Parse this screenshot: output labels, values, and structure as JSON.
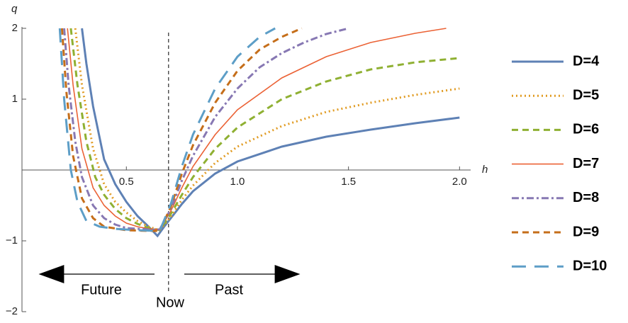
{
  "chart_data": {
    "type": "line",
    "x_label": "h",
    "y_label": "q",
    "xlim": [
      0.03,
      2.05
    ],
    "ylim": [
      -2,
      2
    ],
    "xticks": [
      0.5,
      {
        "value": 1,
        "label": "1.0"
      },
      1.5,
      {
        "value": 2,
        "label": "2.0"
      }
    ],
    "yticks": [
      {
        "value": -2,
        "label": "−2"
      },
      {
        "value": -1,
        "label": "−1"
      },
      1,
      2
    ],
    "vline": 0.69,
    "annotations": [
      "Future",
      "Now",
      "Past"
    ],
    "series": [
      {
        "name": "D=4",
        "color": "#5e81b5",
        "style": "solid-thick",
        "x": [
          0.3,
          0.32,
          0.35,
          0.4,
          0.45,
          0.5,
          0.55,
          0.6,
          0.64,
          0.67,
          0.7,
          0.75,
          0.8,
          0.9,
          1.0,
          1.2,
          1.4,
          1.6,
          1.8,
          2.0
        ],
        "values": [
          2,
          1.5,
          0.9,
          0.15,
          -0.2,
          -0.45,
          -0.65,
          -0.8,
          -0.93,
          -0.8,
          -0.68,
          -0.48,
          -0.3,
          -0.05,
          0.12,
          0.33,
          0.47,
          0.57,
          0.66,
          0.74
        ]
      },
      {
        "name": "D=5",
        "color": "#e19c24",
        "style": "dotted",
        "x": [
          0.27,
          0.3,
          0.35,
          0.4,
          0.45,
          0.5,
          0.55,
          0.6,
          0.65,
          0.7,
          0.75,
          0.8,
          0.9,
          1.0,
          1.2,
          1.4,
          1.6,
          1.8,
          2.0
        ],
        "values": [
          2,
          1.2,
          0.3,
          -0.2,
          -0.45,
          -0.6,
          -0.72,
          -0.8,
          -0.85,
          -0.66,
          -0.42,
          -0.22,
          0.1,
          0.33,
          0.62,
          0.82,
          0.95,
          1.06,
          1.15
        ]
      },
      {
        "name": "D=6",
        "color": "#8fb032",
        "style": "dashed",
        "x": [
          0.25,
          0.28,
          0.32,
          0.36,
          0.4,
          0.45,
          0.5,
          0.55,
          0.6,
          0.65,
          0.7,
          0.75,
          0.8,
          0.9,
          1.0,
          1.2,
          1.4,
          1.6,
          1.8,
          2.0
        ],
        "values": [
          2,
          1.2,
          0.4,
          -0.1,
          -0.35,
          -0.55,
          -0.68,
          -0.76,
          -0.82,
          -0.85,
          -0.62,
          -0.35,
          -0.1,
          0.3,
          0.6,
          1.0,
          1.25,
          1.42,
          1.52,
          1.58
        ]
      },
      {
        "name": "D=7",
        "color": "#eb6235",
        "style": "solid-thin",
        "x": [
          0.235,
          0.26,
          0.3,
          0.35,
          0.4,
          0.45,
          0.5,
          0.55,
          0.6,
          0.65,
          0.7,
          0.75,
          0.8,
          0.9,
          1.0,
          1.2,
          1.4,
          1.6,
          1.8,
          1.94
        ],
        "values": [
          2,
          1.2,
          0.3,
          -0.25,
          -0.5,
          -0.65,
          -0.75,
          -0.8,
          -0.83,
          -0.84,
          -0.58,
          -0.25,
          0.05,
          0.5,
          0.85,
          1.3,
          1.6,
          1.8,
          1.93,
          2.0
        ]
      },
      {
        "name": "D=8",
        "color": "#8778b3",
        "style": "dashdot",
        "x": [
          0.22,
          0.24,
          0.27,
          0.3,
          0.35,
          0.4,
          0.45,
          0.5,
          0.6,
          0.65,
          0.7,
          0.75,
          0.8,
          0.9,
          1.0,
          1.1,
          1.2,
          1.3,
          1.4,
          1.5
        ],
        "values": [
          2,
          1.2,
          0.4,
          -0.1,
          -0.5,
          -0.68,
          -0.77,
          -0.82,
          -0.84,
          -0.84,
          -0.55,
          -0.15,
          0.2,
          0.75,
          1.15,
          1.45,
          1.65,
          1.8,
          1.92,
          2.0
        ]
      },
      {
        "name": "D=9",
        "color": "#c56e1a",
        "style": "dashed",
        "x": [
          0.21,
          0.23,
          0.26,
          0.3,
          0.35,
          0.4,
          0.5,
          0.6,
          0.65,
          0.7,
          0.75,
          0.8,
          0.9,
          1.0,
          1.1,
          1.2,
          1.29
        ],
        "values": [
          2,
          1.1,
          0.2,
          -0.4,
          -0.68,
          -0.8,
          -0.85,
          -0.86,
          -0.86,
          -0.52,
          -0.05,
          0.35,
          0.95,
          1.4,
          1.7,
          1.88,
          2.0
        ]
      },
      {
        "name": "D=10",
        "color": "#5d9ec7",
        "style": "longdash",
        "x": [
          0.2,
          0.22,
          0.25,
          0.28,
          0.32,
          0.38,
          0.45,
          0.55,
          0.65,
          0.7,
          0.75,
          0.8,
          0.9,
          1.0,
          1.1,
          1.17
        ],
        "values": [
          2,
          1.0,
          0.0,
          -0.45,
          -0.72,
          -0.8,
          -0.83,
          -0.85,
          -0.86,
          -0.48,
          0.05,
          0.5,
          1.15,
          1.6,
          1.88,
          2.0
        ]
      }
    ]
  }
}
